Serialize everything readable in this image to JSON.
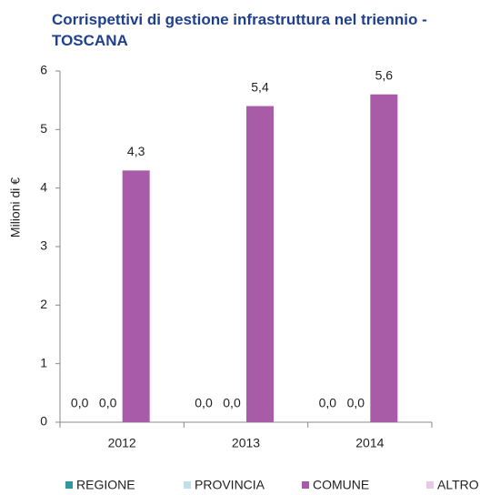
{
  "chart_data": {
    "type": "bar",
    "title": "Corrispettivi di gestione infrastruttura nel triennio - TOSCANA",
    "y_label": "Milioni di €",
    "categories": [
      "2012",
      "2013",
      "2014"
    ],
    "series": [
      {
        "name": "REGIONE",
        "color": "#2e9a9c",
        "values": [
          0,
          0,
          0
        ],
        "value_labels": [
          "0,0",
          "0,0",
          "0,0"
        ]
      },
      {
        "name": "PROVINCIA",
        "color": "#bfe0ea",
        "values": [
          0,
          0,
          0
        ],
        "value_labels": [
          "0,0",
          "0,0",
          "0,0"
        ]
      },
      {
        "name": "COMUNE",
        "color": "#a85ca8",
        "values": [
          4.3,
          5.4,
          5.6
        ],
        "value_labels": [
          "4,3",
          "5,4",
          "5,6"
        ]
      },
      {
        "name": "ALTRO",
        "color": "#e8c8e8",
        "values": [
          null,
          null,
          null
        ]
      }
    ],
    "ylim": [
      0,
      6
    ],
    "yticks": [
      0,
      1,
      2,
      3,
      4,
      5,
      6
    ],
    "grid": false,
    "legend": "bottom"
  }
}
